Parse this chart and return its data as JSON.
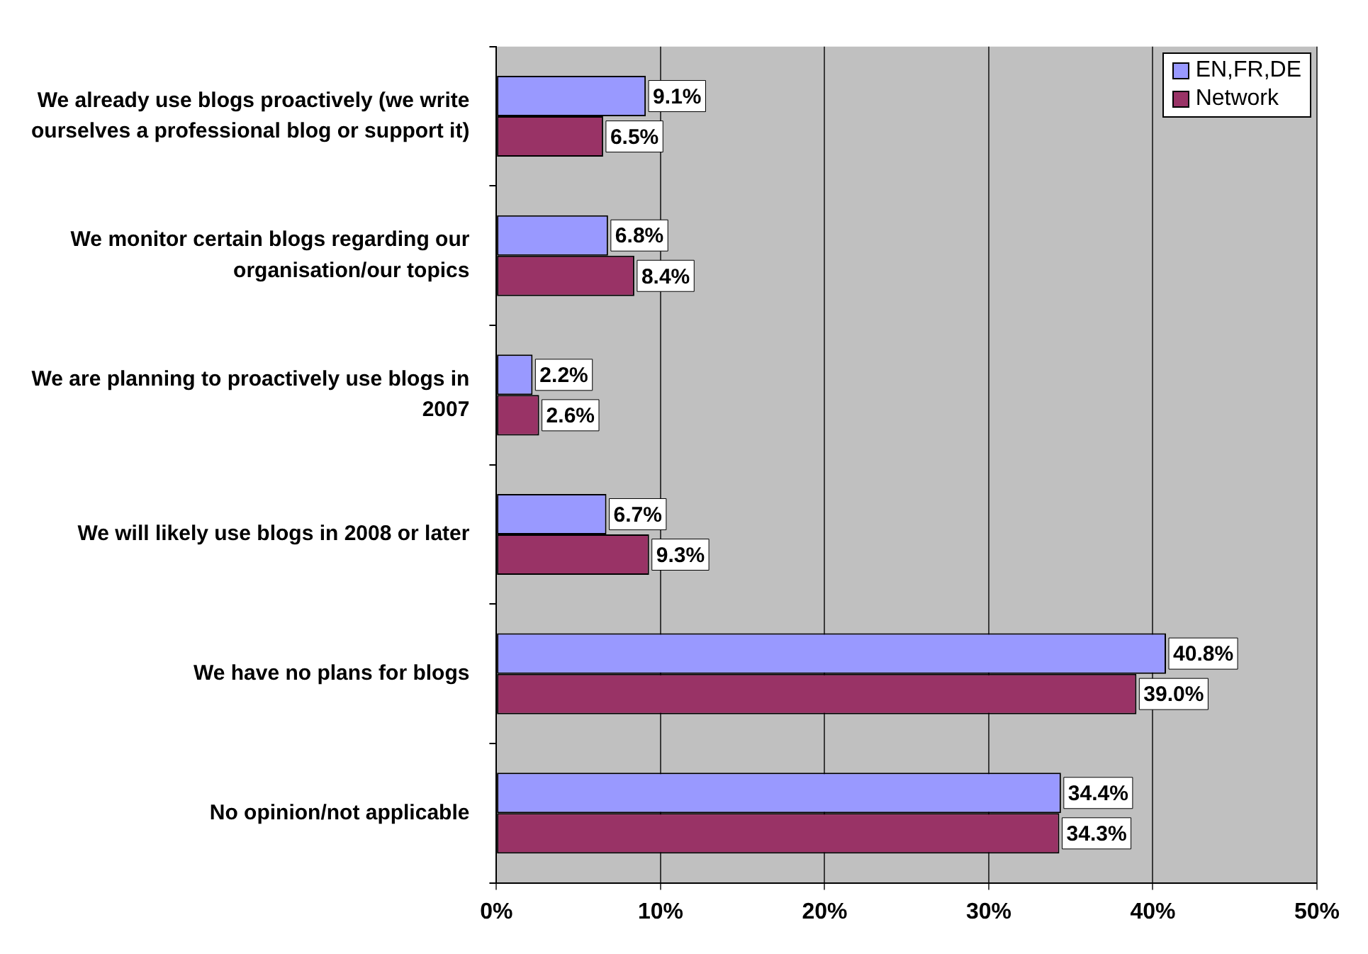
{
  "chart_data": {
    "type": "bar",
    "orientation": "horizontal",
    "categories": [
      "We already use blogs proactively (we write ourselves a professional blog or support it)",
      "We monitor certain blogs regarding our organisation/our topics",
      "We are planning to proactively use blogs in 2007",
      "We will likely use blogs in 2008 or later",
      "We have no plans for blogs",
      "No opinion/not applicable"
    ],
    "series": [
      {
        "name": "EN,FR,DE",
        "color": "#9999ff",
        "values": [
          9.1,
          6.8,
          2.2,
          6.7,
          40.8,
          34.4
        ],
        "value_labels": [
          "9.1%",
          "6.8%",
          "2.2%",
          "6.7%",
          "40.8%",
          "34.4%"
        ]
      },
      {
        "name": "Network",
        "color": "#993366",
        "values": [
          6.5,
          8.4,
          2.6,
          9.3,
          39.0,
          34.3
        ],
        "value_labels": [
          "6.5%",
          "8.4%",
          "2.6%",
          "9.3%",
          "39.0%",
          "34.3%"
        ]
      }
    ],
    "xlim": [
      0,
      50
    ],
    "xticks": [
      {
        "value": 0,
        "label": "0%"
      },
      {
        "value": 10,
        "label": "10%"
      },
      {
        "value": 20,
        "label": "20%"
      },
      {
        "value": 30,
        "label": "30%"
      },
      {
        "value": 40,
        "label": "40%"
      },
      {
        "value": 50,
        "label": "50%"
      }
    ],
    "grid": "x",
    "legend": "top right"
  }
}
